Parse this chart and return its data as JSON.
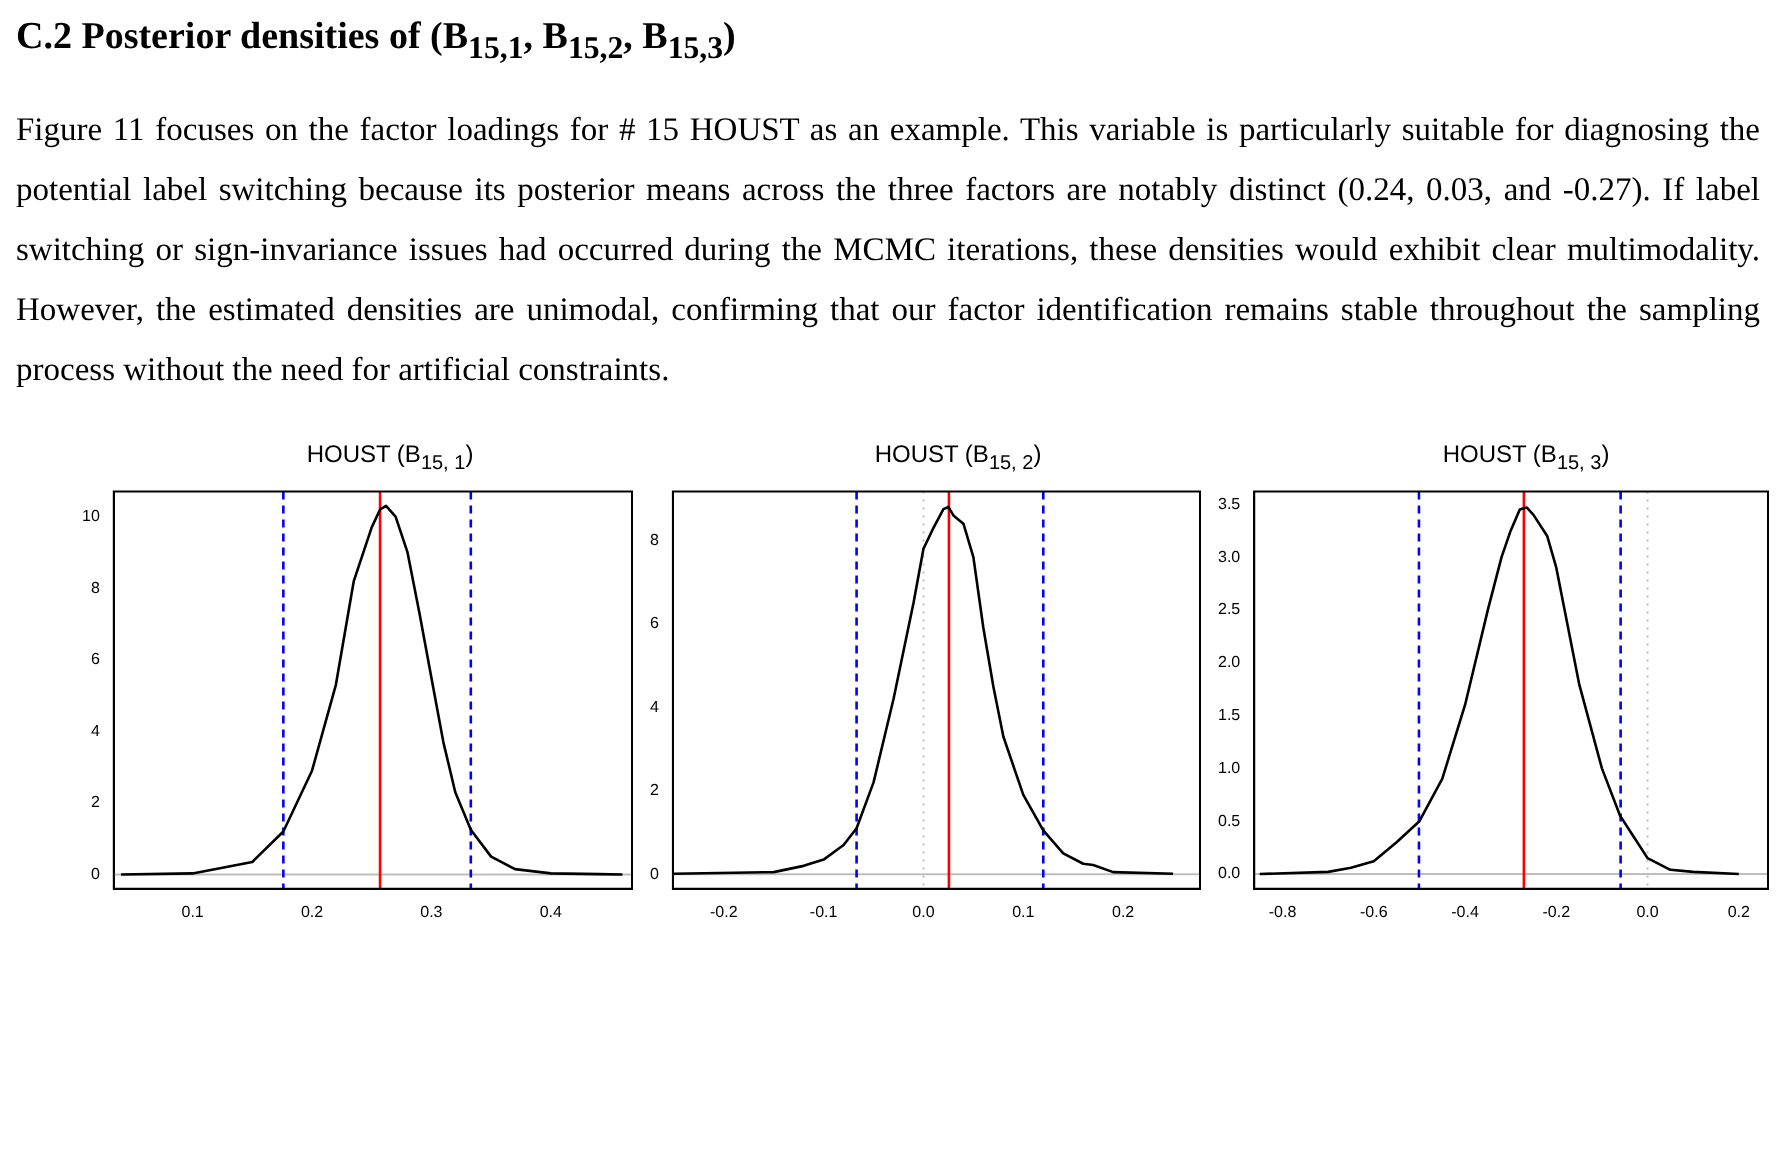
{
  "chart_data": [
    {
      "type": "line",
      "title": "HOUST (B$_{15, 1}$)",
      "annotations": [
        "C.2 Posterior densities of (B$_{15,1}$, B$_{15,2}$, B$_{15,3}$)",
        "Figure 11 focuses on the factor loadings for # 15 HOUST as an example. This variable is particularly suitable for diagnosing the potential label switching because its posterior means across the three factors are notably distinct (0.24, 0.03, and -0.27). If label switching or sign-invariance issues had occurred during the MCMC iterations, these densities would exhibit clear multimodality. However, the estimated densities are unimodal, confirming that our factor identification remains stable throughout the sampling process without the need for artificial constraints."
      ],
      "x": [
        0.04,
        0.1,
        0.15,
        0.176,
        0.2,
        0.22,
        0.235,
        0.25,
        0.257,
        0.262,
        0.27,
        0.28,
        0.29,
        0.3,
        0.31,
        0.32,
        0.333,
        0.35,
        0.37,
        0.4,
        0.44,
        0.46
      ],
      "values": [
        0,
        0.03,
        0.35,
        1.2,
        2.9,
        5.3,
        8.2,
        9.7,
        10.2,
        10.3,
        10,
        9,
        7.3,
        5.5,
        3.7,
        2.3,
        1.25,
        0.5,
        0.15,
        0.03,
        0.01,
        0
      ],
      "color": "#000000",
      "xlim": [
        0.034,
        0.468
      ],
      "ylim": [
        -0.4,
        10.7
      ],
      "xticks": [
        0.1,
        0.2,
        0.3,
        0.4
      ],
      "yticks": [
        0,
        2,
        4,
        6,
        8,
        10
      ],
      "ref_lines": [
        {
          "axis": "y",
          "value": 0,
          "color": "#bebebe",
          "line_style": "solid"
        },
        {
          "axis": "x",
          "value": 0.176,
          "color": "#0000ff",
          "line_style": "dashed"
        },
        {
          "axis": "x",
          "value": 0.333,
          "color": "#0000ff",
          "line_style": "dashed"
        },
        {
          "axis": "x",
          "value": 0.257,
          "color": "#ff0000",
          "line_style": "solid"
        }
      ],
      "grid": false,
      "legend": false,
      "marker": "none",
      "line_style": "solid"
    },
    {
      "type": "line",
      "title": "HOUST (B$_{15, 2}$)",
      "x": [
        -0.25,
        -0.15,
        -0.12,
        -0.1,
        -0.08,
        -0.067,
        -0.05,
        -0.03,
        -0.01,
        0,
        0.01,
        0.02,
        0.025,
        0.03,
        0.04,
        0.05,
        0.06,
        0.07,
        0.08,
        0.1,
        0.12,
        0.14,
        0.16,
        0.17,
        0.19,
        0.25
      ],
      "values": [
        0.01,
        0.05,
        0.2,
        0.35,
        0.7,
        1.1,
        2.2,
        4.2,
        6.5,
        7.8,
        8.3,
        8.75,
        8.8,
        8.6,
        8.4,
        7.6,
        5.9,
        4.5,
        3.3,
        1.9,
        1.05,
        0.5,
        0.25,
        0.22,
        0.05,
        0.01
      ],
      "color": "#000000",
      "xlim": [
        -0.251,
        0.277
      ],
      "ylim": [
        -0.35,
        9.17
      ],
      "xticks": [
        -0.2,
        -0.1,
        {
          "value": 0,
          "label": "0.0"
        },
        0.1,
        0.2
      ],
      "yticks": [
        0,
        2,
        4,
        6,
        8
      ],
      "ref_lines": [
        {
          "axis": "y",
          "value": 0,
          "color": "#bebebe",
          "line_style": "solid"
        },
        {
          "axis": "x",
          "value": 0,
          "color": "#bebebe",
          "line_style": "dotted"
        },
        {
          "axis": "x",
          "value": -0.067,
          "color": "#0000ff",
          "line_style": "dashed"
        },
        {
          "axis": "x",
          "value": 0.12,
          "color": "#0000ff",
          "line_style": "dashed"
        },
        {
          "axis": "x",
          "value": 0.0255,
          "color": "#ff0000",
          "line_style": "solid"
        }
      ],
      "grid": false,
      "legend": false,
      "marker": "none",
      "line_style": "solid"
    },
    {
      "type": "line",
      "title": "HOUST (B$_{15, 3}$)",
      "x": [
        -0.85,
        -0.7,
        -0.65,
        -0.6,
        -0.55,
        -0.5,
        -0.45,
        -0.4,
        -0.35,
        -0.32,
        -0.3,
        -0.28,
        -0.265,
        -0.25,
        -0.22,
        -0.2,
        -0.15,
        -0.1,
        -0.06,
        -0.03,
        0,
        0.05,
        0.1,
        0.2
      ],
      "values": [
        0,
        0.02,
        0.06,
        0.12,
        0.3,
        0.5,
        0.9,
        1.6,
        2.5,
        3,
        3.25,
        3.45,
        3.47,
        3.4,
        3.2,
        2.9,
        1.8,
        1,
        0.55,
        0.35,
        0.15,
        0.04,
        0.02,
        0
      ],
      "color": "#000000",
      "xlim": [
        -0.862,
        0.264
      ],
      "ylim": [
        -0.14,
        3.62
      ],
      "xticks": [
        -0.8,
        -0.6,
        -0.4,
        -0.2,
        {
          "value": 0,
          "label": "0.0"
        },
        0.2
      ],
      "yticks": [
        {
          "value": 0,
          "label": "0.0"
        },
        0.5,
        {
          "value": 1,
          "label": "1.0"
        },
        1.5,
        {
          "value": 2,
          "label": "2.0"
        },
        2.5,
        {
          "value": 3,
          "label": "3.0"
        },
        3.5
      ],
      "ref_lines": [
        {
          "axis": "y",
          "value": 0,
          "color": "#bebebe",
          "line_style": "solid"
        },
        {
          "axis": "x",
          "value": 0,
          "color": "#bebebe",
          "line_style": "dotted"
        },
        {
          "axis": "x",
          "value": -0.501,
          "color": "#0000ff",
          "line_style": "dashed"
        },
        {
          "axis": "x",
          "value": -0.059,
          "color": "#0000ff",
          "line_style": "dashed"
        },
        {
          "axis": "x",
          "value": -0.271,
          "color": "#ff0000",
          "line_style": "solid"
        }
      ],
      "grid": false,
      "legend": false,
      "marker": "none",
      "line_style": "solid"
    }
  ]
}
